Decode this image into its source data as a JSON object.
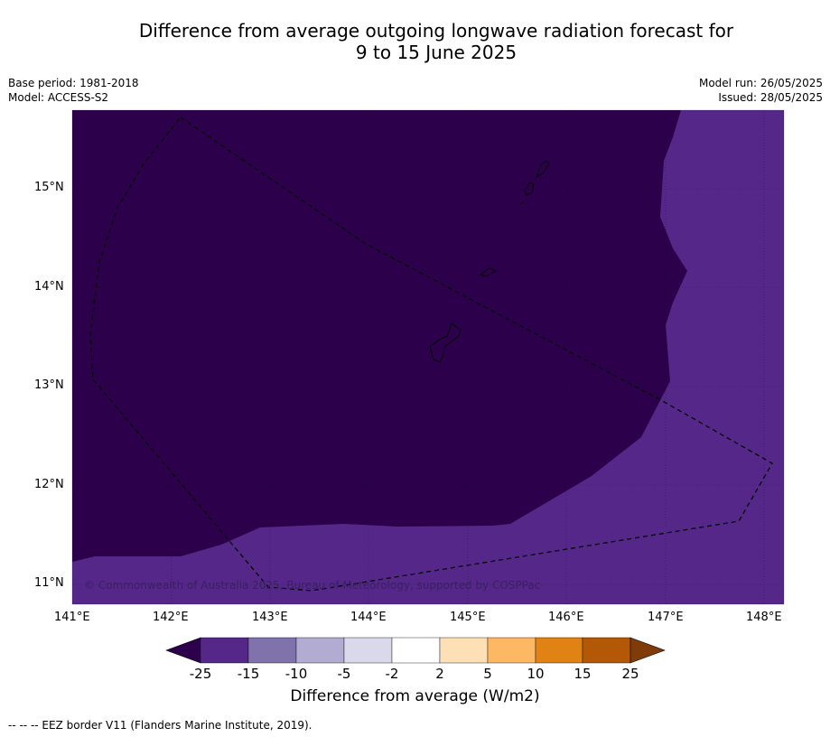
{
  "title_line1": "Difference from average outgoing longwave radiation forecast for",
  "title_line2": "9 to 15 June 2025",
  "base_period": "Base period: 1981-2018",
  "model": "Model: ACCESS-S2",
  "model_run": "Model run: 26/05/2025",
  "issued": "Issued: 28/05/2025",
  "copyright": "© Commonwealth of Australia 2025, Bureau of Meteorology, supported by COSPPac",
  "lat_labels": [
    "15°N",
    "14°N",
    "13°N",
    "12°N",
    "11°N"
  ],
  "lon_labels": [
    "141°E",
    "142°E",
    "143°E",
    "144°E",
    "145°E",
    "146°E",
    "147°E",
    "148°E"
  ],
  "colorbar": {
    "ticks": [
      "-25",
      "-15",
      "-10",
      "-5",
      "-2",
      "2",
      "5",
      "10",
      "15",
      "25"
    ],
    "colors": [
      "#2d004b",
      "#542788",
      "#8073ac",
      "#b2abd2",
      "#d8daeb",
      "#ffffff",
      "#fee0b6",
      "#fdb863",
      "#e08214",
      "#b35806",
      "#7f3b08"
    ],
    "label": "Difference from average (W/m2)"
  },
  "footnote": "-- -- -- EEZ border V11 (Flanders Marine Institute, 2019).",
  "map_colors": {
    "strong_negative": "#2d004b",
    "moderate_negative": "#542788"
  }
}
